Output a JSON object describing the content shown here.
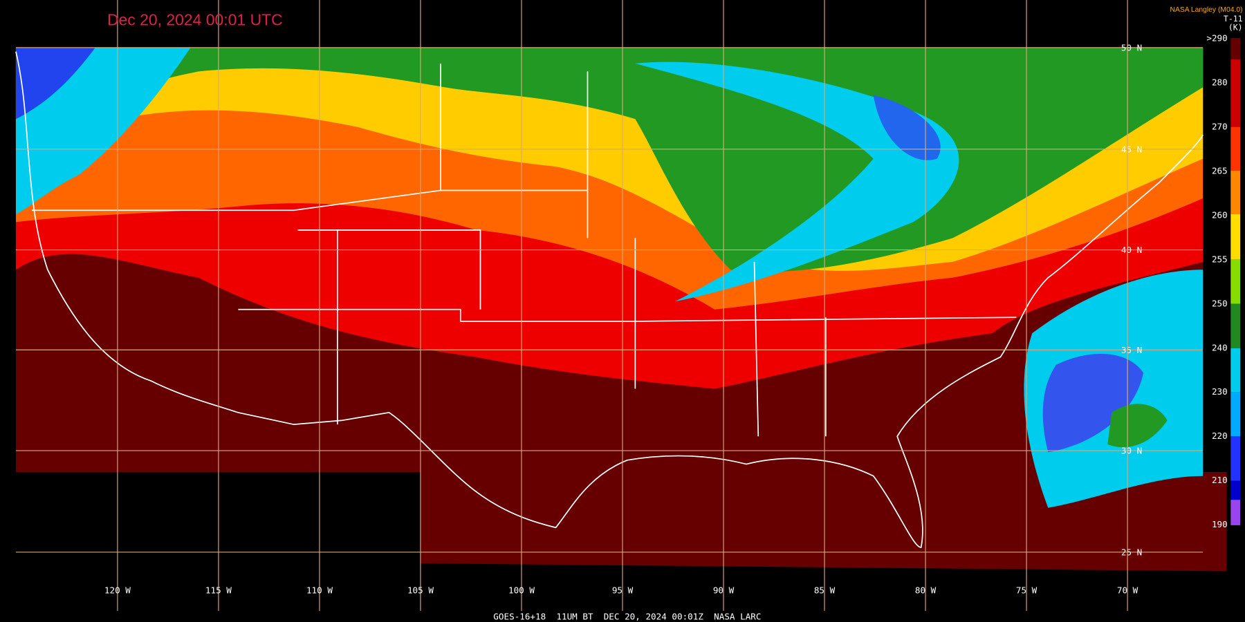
{
  "header": {
    "title": "Dec 20, 2024 00:01 UTC",
    "credit": "NASA Langley (M04.0)",
    "channel": "T-11",
    "unit": "(K)"
  },
  "colorbar": {
    "labels": [
      ">290",
      "280",
      "270",
      "265",
      "260",
      "255",
      "250",
      "240",
      "230",
      "220",
      "210",
      "190"
    ]
  },
  "grid": {
    "latitudes": [
      "50 N",
      "45 N",
      "40 N",
      "35 N",
      "30 N",
      "25 N"
    ],
    "longitudes": [
      "120 W",
      "115 W",
      "110 W",
      "105 W",
      "100 W",
      "95 W",
      "90 W",
      "85 W",
      "80 W",
      "75 W",
      "70 W"
    ]
  },
  "footer": "GOES-16+18  11UM BT  DEC 20, 2024 00:01Z  NASA LARC"
}
